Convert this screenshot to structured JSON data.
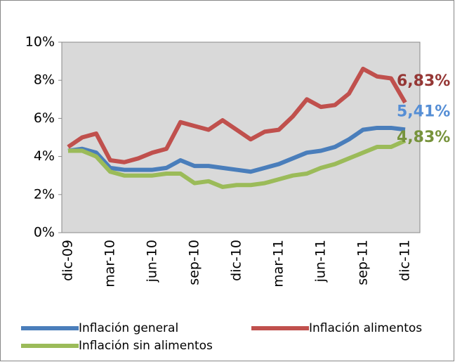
{
  "chart_data": {
    "type": "line",
    "categories": [
      "dic-09",
      null,
      null,
      "mar-10",
      null,
      null,
      "jun-10",
      null,
      null,
      "sep-10",
      null,
      null,
      "dic-10",
      null,
      null,
      "mar-11",
      null,
      null,
      "jun-11",
      null,
      null,
      "sep-11",
      null,
      null,
      "dic-11"
    ],
    "series": [
      {
        "name": "Inflación general",
        "color": "#4a7ebb",
        "label_color": "#558ed5",
        "values": [
          4.3,
          4.4,
          4.2,
          3.4,
          3.3,
          3.3,
          3.3,
          3.4,
          3.8,
          3.5,
          3.5,
          3.4,
          3.3,
          3.2,
          3.4,
          3.6,
          3.9,
          4.2,
          4.3,
          4.5,
          4.9,
          5.4,
          5.5,
          5.5,
          5.41
        ],
        "value_labels": [
          null,
          null,
          null,
          null,
          null,
          null,
          null,
          null,
          null,
          null,
          null,
          null,
          null,
          null,
          null,
          null,
          null,
          null,
          null,
          null,
          null,
          null,
          null,
          null,
          "5,41%"
        ]
      },
      {
        "name": "Inflación alimentos",
        "color": "#c0504d",
        "label_color": "#953735",
        "values": [
          4.5,
          5.0,
          5.2,
          3.8,
          3.7,
          3.9,
          4.2,
          4.4,
          5.8,
          5.6,
          5.4,
          5.9,
          5.4,
          4.9,
          5.3,
          5.4,
          6.1,
          7.0,
          6.6,
          6.7,
          7.3,
          8.6,
          8.2,
          8.1,
          6.83
        ],
        "value_labels": [
          null,
          null,
          null,
          null,
          null,
          null,
          null,
          null,
          null,
          null,
          null,
          null,
          null,
          null,
          null,
          null,
          null,
          null,
          null,
          null,
          null,
          null,
          null,
          null,
          "6,83%"
        ]
      },
      {
        "name": "Inflación sin alimentos",
        "color": "#9bbb59",
        "label_color": "#77933c",
        "values": [
          4.3,
          4.3,
          4.0,
          3.2,
          3.0,
          3.0,
          3.0,
          3.1,
          3.1,
          2.6,
          2.7,
          2.4,
          2.5,
          2.5,
          2.6,
          2.8,
          3.0,
          3.1,
          3.4,
          3.6,
          3.9,
          4.2,
          4.5,
          4.5,
          4.83
        ],
        "value_labels": [
          null,
          null,
          null,
          null,
          null,
          null,
          null,
          null,
          null,
          null,
          null,
          null,
          null,
          null,
          null,
          null,
          null,
          null,
          null,
          null,
          null,
          null,
          null,
          null,
          "4,83%"
        ]
      }
    ],
    "ylim": [
      0,
      10
    ],
    "yticks": [
      {
        "value": 0,
        "label": "0%"
      },
      {
        "value": 2,
        "label": "2%"
      },
      {
        "value": 4,
        "label": "4%"
      },
      {
        "value": 6,
        "label": "6%"
      },
      {
        "value": 8,
        "label": "8%"
      },
      {
        "value": 10,
        "label": "10%"
      }
    ],
    "grid": false,
    "legend": "bottom",
    "plot_background": "#d9d9d9"
  }
}
